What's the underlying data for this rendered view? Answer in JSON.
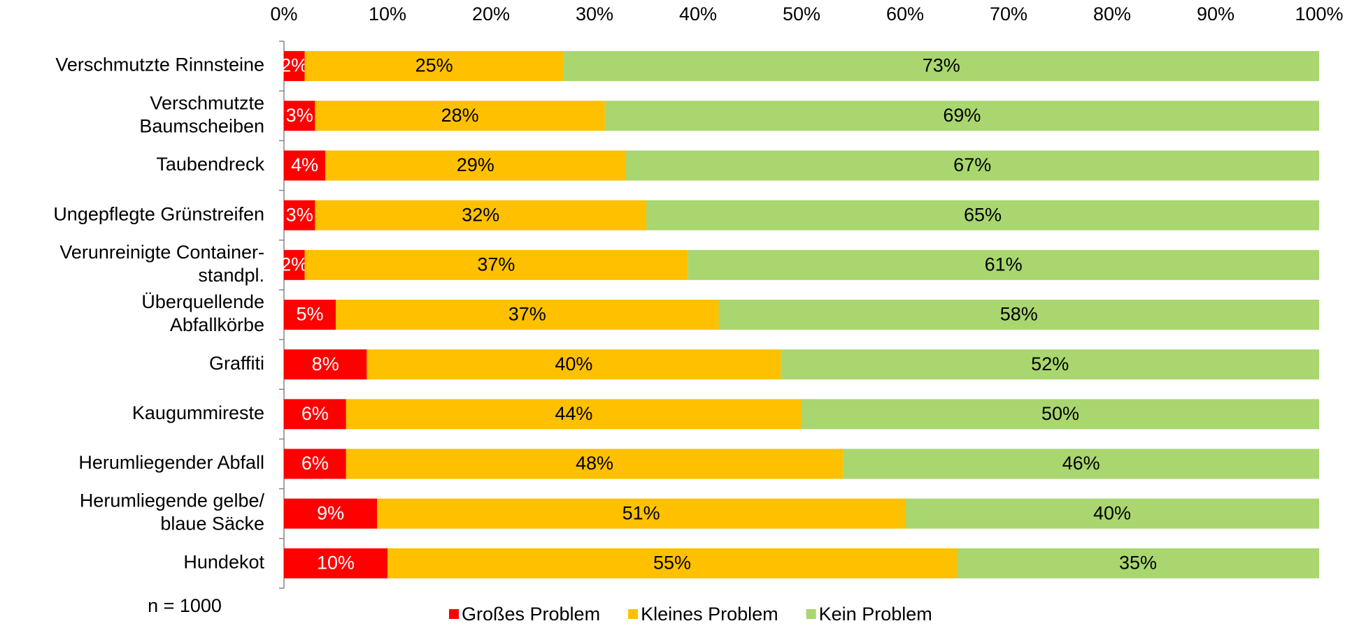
{
  "chart_data": {
    "type": "stacked_barh",
    "categories": [
      "Verschmutzte Rinnsteine",
      "Verschmutzte\nBaumscheiben",
      "Taubendreck",
      "Ungepflegte Grünstreifen",
      "Verunreinigte Container-\nstandpl.",
      "Überquellende\nAbfallkörbe",
      "Graffiti",
      "Kaugummireste",
      "Herumliegender Abfall",
      "Herumliegende gelbe/\nblaue Säcke",
      "Hundekot"
    ],
    "series": [
      {
        "name": "Großes Problem",
        "color": "#ff0000",
        "label_color": "#ffffff",
        "values": [
          2,
          3,
          4,
          3,
          2,
          5,
          8,
          6,
          6,
          9,
          10
        ],
        "value_labels": [
          "2%",
          "3%",
          "4%",
          "3%",
          "2%",
          "5%",
          "8%",
          "6%",
          "6%",
          "9%",
          "10%"
        ]
      },
      {
        "name": "Kleines Problem",
        "color": "#ffc000",
        "label_color": "#000000",
        "values": [
          25,
          28,
          29,
          32,
          37,
          37,
          40,
          44,
          48,
          51,
          55
        ],
        "value_labels": [
          "25%",
          "28%",
          "29%",
          "32%",
          "37%",
          "37%",
          "40%",
          "44%",
          "48%",
          "51%",
          "55%"
        ]
      },
      {
        "name": "Kein Problem",
        "color": "#a9d66f",
        "label_color": "#000000",
        "values": [
          73,
          69,
          67,
          65,
          61,
          58,
          52,
          50,
          46,
          40,
          35
        ],
        "value_labels": [
          "73%",
          "69%",
          "67%",
          "65%",
          "61%",
          "58%",
          "52%",
          "50%",
          "46%",
          "40%",
          "35%"
        ]
      }
    ],
    "xlim": [
      0,
      100
    ],
    "xticks": [
      {
        "value": 0,
        "label": "0%"
      },
      {
        "value": 10,
        "label": "10%"
      },
      {
        "value": 20,
        "label": "20%"
      },
      {
        "value": 30,
        "label": "30%"
      },
      {
        "value": 40,
        "label": "40%"
      },
      {
        "value": 50,
        "label": "50%"
      },
      {
        "value": 60,
        "label": "60%"
      },
      {
        "value": 70,
        "label": "70%"
      },
      {
        "value": 80,
        "label": "80%"
      },
      {
        "value": 90,
        "label": "90%"
      },
      {
        "value": 100,
        "label": "100%"
      }
    ],
    "note": "n = 1000",
    "legend": "bottom"
  }
}
